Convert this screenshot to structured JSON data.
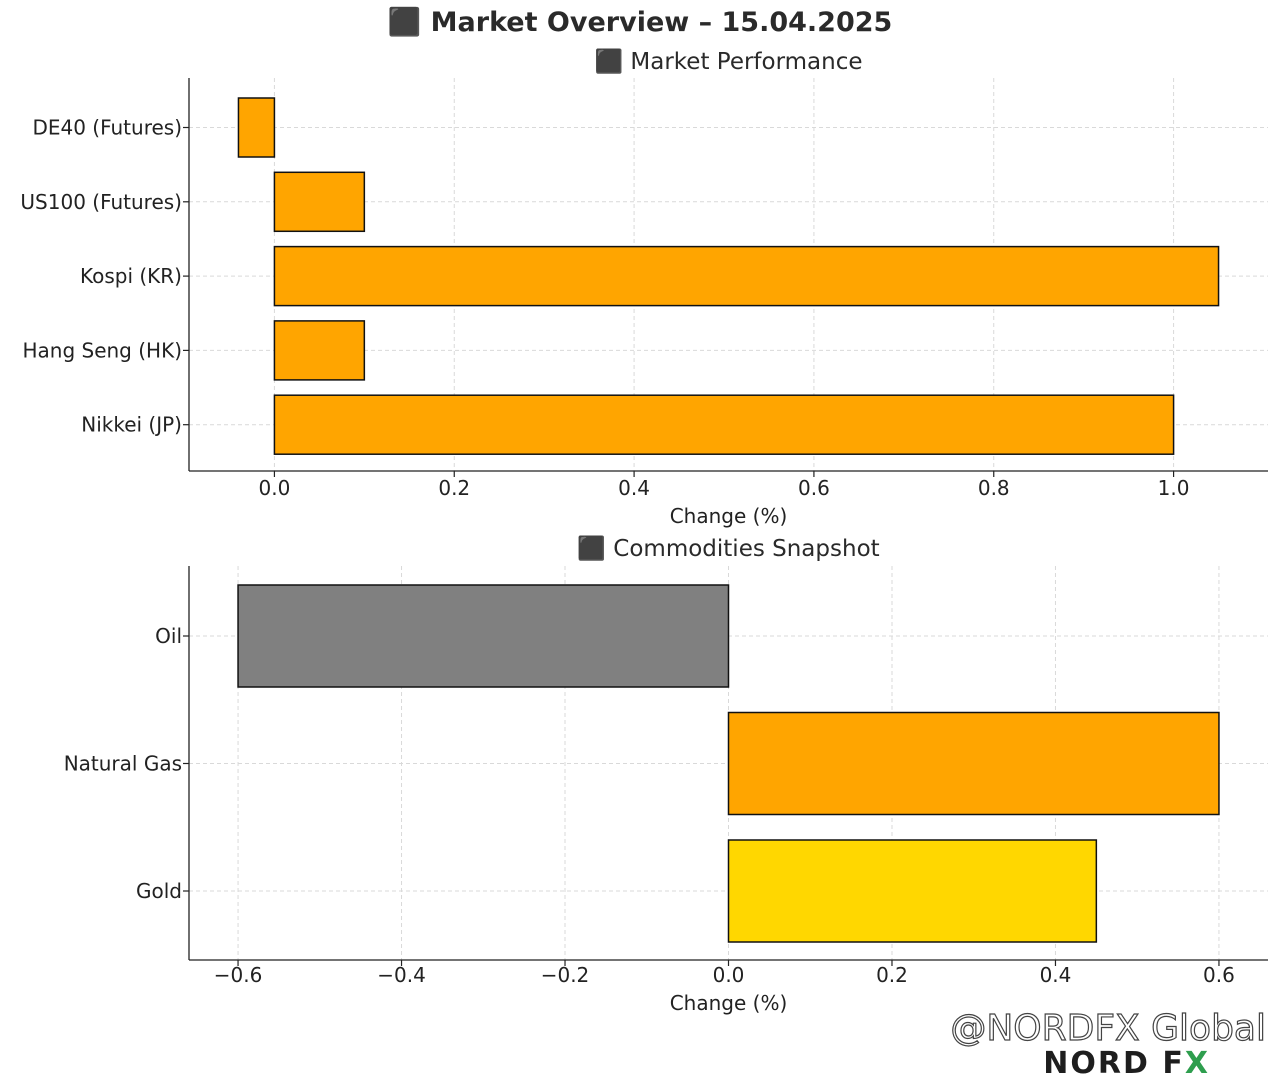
{
  "title": "⬛ Market Overview – 15.04.2025",
  "watermark": {
    "handle": "@NORDFX Global",
    "logo_left": "NORD F",
    "logo_x": "X"
  },
  "colors": {
    "orange": "#FFA500",
    "gray": "#808080",
    "gold": "#FFD700",
    "edge": "#111111",
    "grid": "#d9d9d9"
  },
  "chart_data": [
    {
      "type": "bar",
      "orientation": "horizontal",
      "title": "⬛ Market Performance",
      "xlabel": "Change (%)",
      "ylabel": "",
      "categories": [
        "DE40 (Futures)",
        "US100 (Futures)",
        "Kospi (KR)",
        "Hang Seng (HK)",
        "Nikkei (JP)"
      ],
      "values": [
        -0.04,
        0.1,
        1.05,
        0.1,
        1.0
      ],
      "colors": [
        "#FFA500",
        "#FFA500",
        "#FFA500",
        "#FFA500",
        "#FFA500"
      ],
      "xlim": [
        -0.095,
        1.105
      ],
      "xticks": [
        0.0,
        0.2,
        0.4,
        0.6,
        0.8,
        1.0
      ],
      "xtick_labels": [
        "0.0",
        "0.2",
        "0.4",
        "0.6",
        "0.8",
        "1.0"
      ],
      "grid": true
    },
    {
      "type": "bar",
      "orientation": "horizontal",
      "title": "⬛ Commodities Snapshot",
      "xlabel": "Change (%)",
      "ylabel": "",
      "categories": [
        "Oil",
        "Natural Gas",
        "Gold"
      ],
      "values": [
        -0.6,
        0.6,
        0.45
      ],
      "colors": [
        "#808080",
        "#FFA500",
        "#FFD700"
      ],
      "xlim": [
        -0.66,
        0.66
      ],
      "xticks": [
        -0.6,
        -0.4,
        -0.2,
        0.0,
        0.2,
        0.4,
        0.6
      ],
      "xtick_labels": [
        "−0.6",
        "−0.4",
        "−0.2",
        "0.0",
        "0.2",
        "0.4",
        "0.6"
      ],
      "grid": true
    }
  ]
}
